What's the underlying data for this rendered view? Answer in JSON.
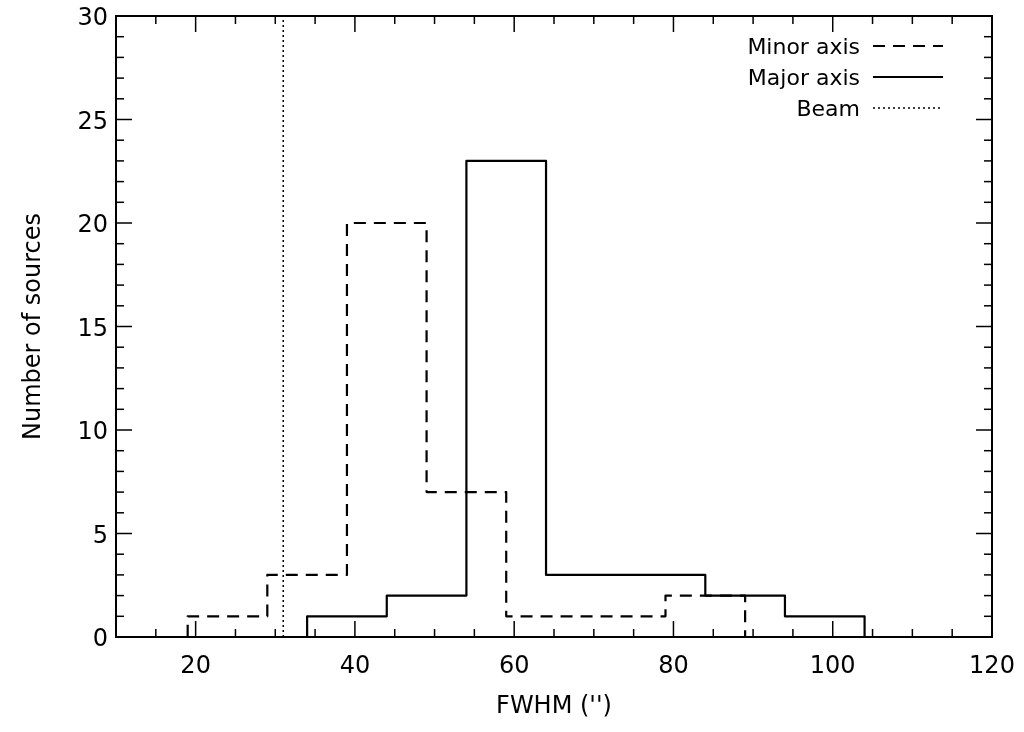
{
  "chart_data": {
    "type": "step",
    "xlabel": "FWHM ('')",
    "ylabel": "Number of sources",
    "xlim": [
      10,
      120
    ],
    "xticks": [
      20,
      40,
      60,
      80,
      100,
      120
    ],
    "ylim": [
      0,
      30
    ],
    "yticks": [
      0,
      5,
      10,
      15,
      20,
      25,
      30
    ],
    "series": [
      {
        "name": "Minor axis",
        "color": "#000000",
        "line_style": "dashed",
        "x": [
          14,
          19,
          29,
          39,
          49,
          59,
          69,
          79,
          89,
          94
        ],
        "values": [
          0,
          1,
          3,
          20,
          7,
          1,
          1,
          2,
          0,
          0
        ]
      },
      {
        "name": "Major axis",
        "color": "#000000",
        "line_style": "solid",
        "x": [
          29,
          34,
          44,
          54,
          64,
          74,
          84,
          94,
          104,
          109
        ],
        "values": [
          0,
          1,
          2,
          23,
          3,
          3,
          2,
          1,
          0,
          0
        ]
      },
      {
        "name": "Beam",
        "type": "line",
        "color": "#000000",
        "line_style": "dotted",
        "x": [
          31,
          31
        ],
        "values": [
          0,
          30
        ]
      }
    ],
    "legend": "top right",
    "grid": false
  }
}
